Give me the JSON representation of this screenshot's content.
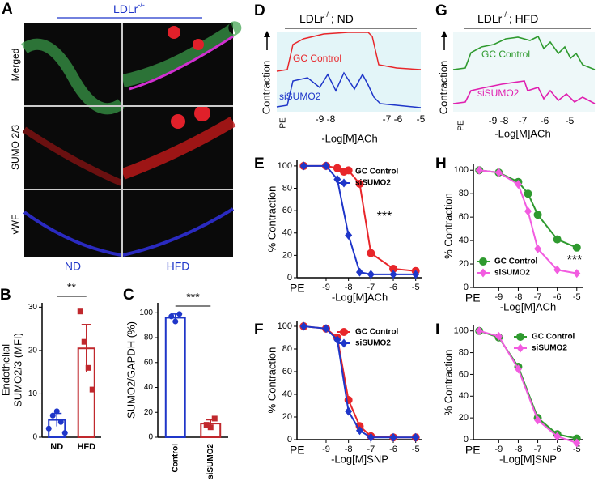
{
  "panel_a": {
    "letter": "A",
    "title": "LDLr",
    "title_sup": "-/-",
    "rows": [
      "Merged",
      "SUMO 2/3",
      "vWF"
    ],
    "columns": [
      "ND",
      "HFD"
    ]
  },
  "panel_d": {
    "letter": "D",
    "title": "LDLr",
    "title_sup": "-/-",
    "title_suffix": "; ND",
    "ylabel": "Contraction",
    "xlabel": "-Log[M]ACh",
    "xlabels": [
      "PE",
      "-9",
      "-8",
      "-7",
      "-6",
      "-5"
    ],
    "traces": [
      "GC Control",
      "siSUMO2"
    ]
  },
  "panel_g": {
    "letter": "G",
    "title": "LDLr",
    "title_sup": "-/-",
    "title_suffix": "; HFD",
    "ylabel": "Contraction",
    "xlabel": "-Log[M]ACh",
    "xlabels": [
      "PE",
      "-9 -8",
      "-7",
      "-6",
      "-5"
    ],
    "traces": [
      "GC Control",
      "siSUMO2"
    ]
  },
  "chart_data": [
    {
      "type": "bar",
      "letter": "B",
      "ylabel": [
        "Endothelial",
        "SUMO2/3 (MFI)"
      ],
      "categories": [
        "ND",
        "HFD"
      ],
      "values": [
        4,
        20.5
      ],
      "errors": [
        1.5,
        5.5
      ],
      "points": [
        [
          2,
          5,
          6,
          3.5,
          1
        ],
        [
          29,
          22,
          16,
          11
        ]
      ],
      "colors": [
        "#1f36c9",
        "#c0282d"
      ],
      "ylim": [
        0,
        31
      ],
      "yticks": [
        0,
        10,
        20,
        30
      ],
      "annotation": "**"
    },
    {
      "type": "bar",
      "letter": "C",
      "ylabel": [
        "SUMO2/GAPDH (%)"
      ],
      "categories": [
        "Control",
        "siSUMO2"
      ],
      "values": [
        96,
        11
      ],
      "errors": [
        3,
        3
      ],
      "points": [
        [
          97,
          93,
          99
        ],
        [
          10,
          8,
          15
        ]
      ],
      "colors": [
        "#1f36c9",
        "#c0282d"
      ],
      "ylim": [
        0,
        108
      ],
      "yticks": [
        0,
        20,
        40,
        60,
        80,
        100
      ],
      "annotation": "***"
    },
    {
      "type": "line",
      "letter": "E",
      "ylabel": "% Contraction",
      "xlabel": "-Log[M]ACh",
      "x": [
        -10,
        -9,
        -8.5,
        -8,
        -7.5,
        -7,
        -6,
        -5
      ],
      "series": [
        {
          "name": "GC Control",
          "color": "#e8262a",
          "marker": "circle",
          "values": [
            100,
            100,
            98,
            96,
            84,
            22,
            8,
            6
          ]
        },
        {
          "name": "siSUMO2",
          "color": "#1f36c9",
          "marker": "diamond",
          "values": [
            100,
            100,
            88,
            38,
            5,
            3,
            3,
            3
          ]
        }
      ],
      "xlim": [
        -10.3,
        -4.7
      ],
      "xticks": [
        {
          "value": -10,
          "label": "PE"
        },
        -9,
        -8,
        -7,
        -6,
        -5
      ],
      "ylim": [
        0,
        105
      ],
      "yticks": [
        0,
        20,
        40,
        60,
        80,
        100
      ],
      "legend": "top-right",
      "annotation": "***"
    },
    {
      "type": "line",
      "letter": "F",
      "ylabel": "% Contraction",
      "xlabel": "-Log[M]SNP",
      "x": [
        -10,
        -9,
        -8.5,
        -8,
        -7.5,
        -7,
        -6,
        -5
      ],
      "series": [
        {
          "name": "GC Control",
          "color": "#e8262a",
          "marker": "circle",
          "values": [
            100,
            98,
            90,
            35,
            12,
            3,
            2,
            2
          ]
        },
        {
          "name": "siSUMO2",
          "color": "#1f36c9",
          "marker": "diamond",
          "values": [
            100,
            98,
            88,
            25,
            8,
            2,
            2,
            2
          ]
        }
      ],
      "xlim": [
        -10.3,
        -4.7
      ],
      "xticks": [
        {
          "value": -10,
          "label": "PE"
        },
        -9,
        -8,
        -7,
        -6,
        -5
      ],
      "ylim": [
        0,
        105
      ],
      "yticks": [
        0,
        20,
        40,
        60,
        80,
        100
      ],
      "legend": "top-right"
    },
    {
      "type": "line",
      "letter": "H",
      "ylabel": "% Contraction",
      "xlabel": "-Log[M]ACh",
      "x": [
        -10,
        -9,
        -8,
        -7.5,
        -7,
        -6,
        -5
      ],
      "series": [
        {
          "name": "GC Control",
          "color": "#2f9a2f",
          "marker": "circle",
          "values": [
            100,
            98,
            90,
            80,
            62,
            41,
            34
          ]
        },
        {
          "name": "siSUMO2",
          "color": "#f25ce0",
          "marker": "diamond",
          "values": [
            100,
            98,
            88,
            65,
            33,
            15,
            12
          ]
        }
      ],
      "xlim": [
        -10.3,
        -4.7
      ],
      "xticks": [
        {
          "value": -10,
          "label": "PE"
        },
        -9,
        -8,
        -7,
        -6,
        -5
      ],
      "ylim": [
        0,
        105
      ],
      "yticks": [
        0,
        20,
        40,
        60,
        80,
        100
      ],
      "legend": "bottom-left",
      "annotation": "***"
    },
    {
      "type": "line",
      "letter": "I",
      "ylabel": "% Contraction",
      "xlabel": "-Log[M]SNP",
      "x": [
        -10,
        -9,
        -8,
        -7,
        -6,
        -5
      ],
      "series": [
        {
          "name": "GC Control",
          "color": "#2f9a2f",
          "marker": "circle",
          "values": [
            100,
            94,
            67,
            20,
            5,
            1
          ]
        },
        {
          "name": "siSUMO2",
          "color": "#f25ce0",
          "marker": "diamond",
          "values": [
            100,
            95,
            65,
            18,
            3,
            -3
          ]
        }
      ],
      "xlim": [
        -10.3,
        -4.7
      ],
      "xticks": [
        {
          "value": -10,
          "label": "PE"
        },
        -9,
        -8,
        -7,
        -6,
        -5
      ],
      "ylim": [
        0,
        105
      ],
      "yticks": [
        0,
        20,
        40,
        60,
        80,
        100
      ],
      "legend": "top-right"
    }
  ]
}
